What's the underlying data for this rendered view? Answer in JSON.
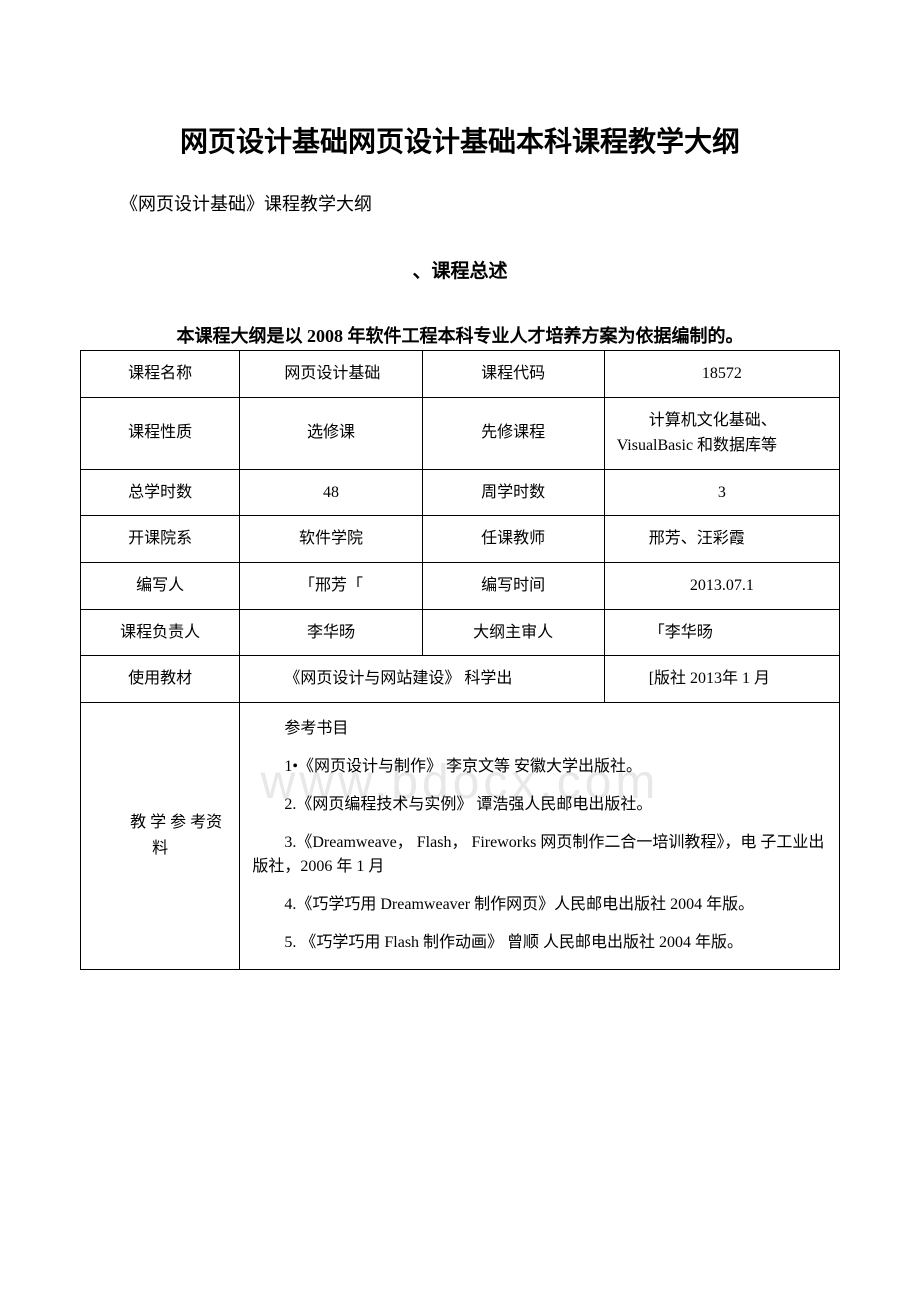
{
  "title": "网页设计基础网页设计基础本科课程教学大纲",
  "subtitle": "《网页设计基础》课程教学大纲",
  "section_heading": "、课程总述",
  "description": "本课程大纲是以 2008 年软件工程本科专业人才培养方案为依据编制的。",
  "watermark": "www.bdocx.com",
  "table": {
    "rows": [
      {
        "label1": "课程名称",
        "value1": "网页设计基础",
        "label2": "课程代码",
        "value2": "18572"
      },
      {
        "label1": "课程性质",
        "value1": "选修课",
        "label2": "先修课程",
        "value2": "计算机文化基础、VisualBasic 和数据库等"
      },
      {
        "label1": "总学时数",
        "value1": "48",
        "label2": "周学时数",
        "value2": "3"
      },
      {
        "label1": "开课院系",
        "value1": "软件学院",
        "label2": "任课教师",
        "value2": "邢芳、汪彩霞"
      },
      {
        "label1": "编写人",
        "value1": "「邢芳「",
        "label2": "编写时间",
        "value2": "2013.07.1"
      },
      {
        "label1": "课程负责人",
        "value1": "李华旸",
        "label2": "大纲主审人",
        "value2": "「李华旸"
      }
    ],
    "textbook": {
      "label": "使用教材",
      "value_left": "《网页设计与网站建设》 科学出",
      "value_right": "[版社 2013年 1 月"
    },
    "references": {
      "label": "教 学 参 考资 料",
      "heading": "参考书目",
      "items": [
        "1•《网页设计与制作》 李京文等 安徽大学出版社。",
        "2.《网页编程技术与实例》 谭浩强人民邮电出版社。",
        "3.《Dreamweave， Flash， Fireworks 网页制作二合一培训教程》，电 子工业出版社，2006 年 1 月",
        "4.《巧学巧用 Dreamweaver 制作网页》人民邮电出版社 2004 年版。",
        "5. 《巧学巧用 Flash 制作动画》 曾顺 人民邮电出版社 2004 年版。"
      ]
    }
  }
}
